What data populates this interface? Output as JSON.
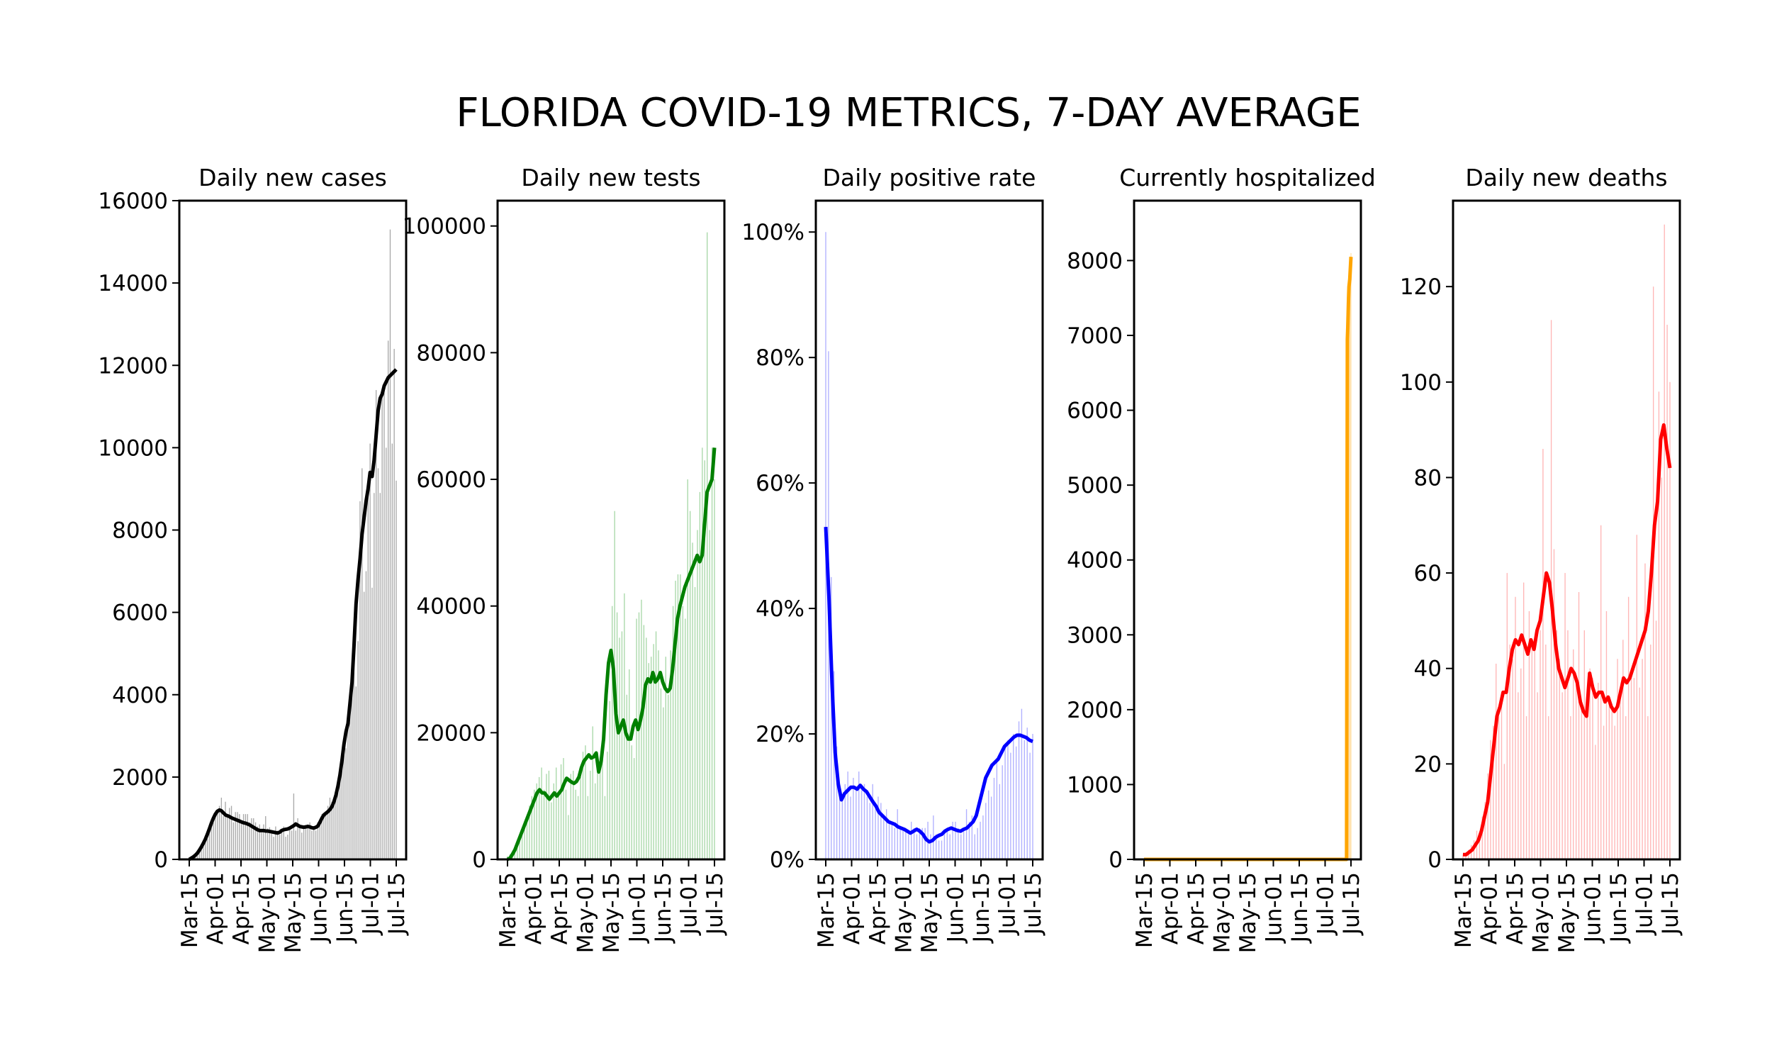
{
  "chart_data": {
    "title": "FLORIDA COVID-19 METRICS, 7-DAY AVERAGE",
    "panels": [
      {
        "id": "cases",
        "type": "bar+line",
        "title": "Daily new cases",
        "color": "#000000",
        "bar_color": "#a9a9a9",
        "ylim": [
          0,
          16000
        ],
        "yticks": [
          0,
          2000,
          4000,
          6000,
          8000,
          10000,
          12000,
          14000,
          16000
        ],
        "ytick_labels": [
          "0",
          "2000",
          "4000",
          "6000",
          "8000",
          "10000",
          "12000",
          "14000",
          "16000"
        ],
        "xticks": [
          "Mar-15",
          "Apr-01",
          "Apr-15",
          "May-01",
          "May-15",
          "Jun-01",
          "Jun-15",
          "Jul-01",
          "Jul-15"
        ],
        "daily_values": [
          30,
          60,
          80,
          120,
          150,
          230,
          280,
          330,
          420,
          500,
          640,
          770,
          900,
          1050,
          1200,
          1300,
          1500,
          1050,
          1400,
          1100,
          1250,
          1300,
          900,
          1150,
          1150,
          1100,
          900,
          1100,
          1100,
          1100,
          900,
          1000,
          1000,
          900,
          800,
          850,
          650,
          850,
          1050,
          750,
          780,
          700,
          550,
          800,
          700,
          600,
          650,
          800,
          550,
          600,
          750,
          700,
          1600,
          700,
          1000,
          800,
          650,
          800,
          800,
          850,
          900,
          700,
          800,
          700,
          900,
          950,
          1100,
          1050,
          1150,
          1300,
          1500,
          1400,
          1300,
          1600,
          1700,
          2100,
          2600,
          3000,
          2700,
          3300,
          3800,
          4100,
          5500,
          4200,
          5300,
          8700,
          9500,
          6500,
          7000,
          9000,
          10100,
          6600,
          8900,
          11400,
          9500,
          8900,
          11400,
          11500,
          10000,
          12600,
          15300,
          10100,
          12400,
          9200
        ],
        "avg_values": [
          0,
          30,
          60,
          100,
          150,
          220,
          300,
          390,
          490,
          610,
          740,
          880,
          1000,
          1100,
          1170,
          1200,
          1180,
          1130,
          1080,
          1060,
          1040,
          1010,
          990,
          970,
          950,
          930,
          910,
          890,
          880,
          860,
          840,
          810,
          780,
          750,
          720,
          700,
          700,
          700,
          690,
          690,
          680,
          670,
          660,
          650,
          640,
          660,
          700,
          720,
          730,
          740,
          760,
          790,
          820,
          860,
          830,
          800,
          790,
          780,
          790,
          800,
          790,
          770,
          760,
          780,
          810,
          900,
          1000,
          1080,
          1120,
          1160,
          1210,
          1280,
          1400,
          1560,
          1780,
          2050,
          2400,
          2800,
          3100,
          3300,
          3800,
          4300,
          5200,
          6200,
          6800,
          7300,
          7900,
          8300,
          8700,
          9000,
          9400,
          9300,
          9700,
          10300,
          10900,
          11200,
          11300,
          11500,
          11600,
          11700,
          11750,
          11800,
          11850,
          11900
        ]
      },
      {
        "id": "tests",
        "type": "bar+line",
        "title": "Daily new tests",
        "color": "#008000",
        "bar_color": "#a8d8a8",
        "ylim": [
          0,
          104000
        ],
        "yticks": [
          0,
          20000,
          40000,
          60000,
          80000,
          100000
        ],
        "ytick_labels": [
          "0",
          "20000",
          "40000",
          "60000",
          "80000",
          "100000"
        ],
        "xticks": [
          "Mar-15",
          "Apr-01",
          "Apr-15",
          "May-01",
          "May-15",
          "Jun-01",
          "Jun-15",
          "Jul-01",
          "Jul-15"
        ],
        "daily_values": [
          500,
          800,
          1200,
          2000,
          3000,
          4000,
          5000,
          6000,
          7000,
          8500,
          10000,
          11000,
          12000,
          13000,
          14500,
          11000,
          13500,
          14000,
          9000,
          12000,
          14500,
          10000,
          15000,
          16000,
          11000,
          7000,
          13500,
          14000,
          11000,
          10000,
          13000,
          17000,
          18000,
          10000,
          14000,
          21000,
          12000,
          15000,
          16000,
          17000,
          10000,
          17000,
          25000,
          40000,
          55000,
          39000,
          35000,
          36000,
          42000,
          26000,
          30000,
          18000,
          16000,
          38000,
          39000,
          41000,
          37000,
          35000,
          31000,
          32000,
          34000,
          36000,
          33000,
          27000,
          24000,
          32000,
          26000,
          33000,
          40000,
          44000,
          45000,
          45000,
          40000,
          38000,
          60000,
          55000,
          50000,
          43000,
          52000,
          58000,
          65000,
          63000,
          99000,
          52000,
          65000,
          60000
        ],
        "avg_values": [
          0,
          200,
          800,
          1500,
          2500,
          3500,
          4500,
          5500,
          6500,
          7500,
          8500,
          9500,
          10500,
          11000,
          10500,
          10500,
          10000,
          9500,
          10000,
          10500,
          10000,
          10500,
          11000,
          12000,
          12800,
          12500,
          12200,
          12000,
          12300,
          13000,
          14500,
          15500,
          16000,
          16500,
          16000,
          16200,
          16800,
          13800,
          15500,
          19000,
          26000,
          31000,
          33000,
          30000,
          23000,
          20000,
          21000,
          22000,
          20000,
          19000,
          19000,
          21000,
          22000,
          20500,
          22000,
          24000,
          27500,
          28500,
          28000,
          29500,
          28000,
          28500,
          29500,
          28000,
          27000,
          26500,
          27000,
          30000,
          34000,
          38000,
          40000,
          41500,
          43000,
          44000,
          45000,
          46000,
          47000,
          48000,
          47000,
          48000,
          53000,
          58000,
          59000,
          60000,
          65000
        ]
      },
      {
        "id": "positive_rate",
        "type": "bar+line",
        "title": "Daily positive rate",
        "color": "#0000ff",
        "bar_color": "#b0b0ff",
        "ylim": [
          0,
          1.05
        ],
        "yticks": [
          0,
          0.2,
          0.4,
          0.6,
          0.8,
          1.0
        ],
        "ytick_labels": [
          "0%",
          "20%",
          "40%",
          "60%",
          "80%",
          "100%"
        ],
        "xticks": [
          "Mar-15",
          "Apr-01",
          "Apr-15",
          "May-01",
          "May-15",
          "Jun-01",
          "Jun-15",
          "Jul-01",
          "Jul-15"
        ],
        "daily_values": [
          1.0,
          0.81,
          0.45,
          0.3,
          0.18,
          0.12,
          0.1,
          0.12,
          0.14,
          0.1,
          0.13,
          0.11,
          0.14,
          0.11,
          0.12,
          0.1,
          0.09,
          0.12,
          0.08,
          0.1,
          0.09,
          0.07,
          0.08,
          0.06,
          0.06,
          0.05,
          0.08,
          0.05,
          0.05,
          0.05,
          0.04,
          0.06,
          0.05,
          0.04,
          0.05,
          0.05,
          0.05,
          0.06,
          0.04,
          0.07,
          0.04,
          0.03,
          0.03,
          0.04,
          0.05,
          0.04,
          0.06,
          0.06,
          0.05,
          0.04,
          0.05,
          0.08,
          0.06,
          0.07,
          0.04,
          0.05,
          0.06,
          0.07,
          0.09,
          0.11,
          0.1,
          0.13,
          0.16,
          0.12,
          0.15,
          0.18,
          0.19,
          0.17,
          0.2,
          0.18,
          0.22,
          0.24,
          0.19,
          0.21,
          0.17,
          0.2
        ],
        "avg_values": [
          0.53,
          0.42,
          0.28,
          0.17,
          0.12,
          0.095,
          0.105,
          0.11,
          0.115,
          0.115,
          0.112,
          0.118,
          0.112,
          0.108,
          0.1,
          0.092,
          0.085,
          0.075,
          0.07,
          0.065,
          0.06,
          0.058,
          0.056,
          0.052,
          0.05,
          0.048,
          0.045,
          0.042,
          0.045,
          0.048,
          0.045,
          0.04,
          0.032,
          0.028,
          0.03,
          0.035,
          0.038,
          0.04,
          0.045,
          0.048,
          0.05,
          0.048,
          0.046,
          0.045,
          0.048,
          0.05,
          0.055,
          0.06,
          0.07,
          0.09,
          0.11,
          0.13,
          0.14,
          0.15,
          0.155,
          0.16,
          0.17,
          0.18,
          0.185,
          0.19,
          0.195,
          0.198,
          0.198,
          0.196,
          0.194,
          0.19,
          0.188
        ]
      },
      {
        "id": "hospitalized",
        "type": "bar+line",
        "title": "Currently hospitalized",
        "color": "#ffa500",
        "bar_color": "#ffe2b0",
        "ylim": [
          0,
          8800
        ],
        "yticks": [
          0,
          1000,
          2000,
          3000,
          4000,
          5000,
          6000,
          7000,
          8000
        ],
        "ytick_labels": [
          "0",
          "1000",
          "2000",
          "3000",
          "4000",
          "5000",
          "6000",
          "7000",
          "8000"
        ],
        "xticks": [
          "Mar-15",
          "Apr-01",
          "Apr-15",
          "May-01",
          "May-15",
          "Jun-01",
          "Jun-15",
          "Jul-01",
          "Jul-15"
        ],
        "hospitalized_start_index": 113,
        "daily_values": [
          6900,
          7100,
          7300,
          7500,
          7600,
          7700,
          7800,
          7900,
          8000,
          8100
        ],
        "avg_values": [
          6950,
          7100,
          7300,
          7500,
          7650,
          7700,
          7750,
          7850,
          7950,
          8050
        ]
      },
      {
        "id": "deaths",
        "type": "bar+line",
        "title": "Daily new deaths",
        "color": "#ff0000",
        "bar_color": "#ffb6b6",
        "ylim": [
          0,
          138
        ],
        "yticks": [
          0,
          20,
          40,
          60,
          80,
          100,
          120
        ],
        "ytick_labels": [
          "0",
          "20",
          "40",
          "60",
          "80",
          "100",
          "120"
        ],
        "xticks": [
          "Mar-15",
          "Apr-01",
          "Apr-15",
          "May-01",
          "May-15",
          "Jun-01",
          "Jun-15",
          "Jul-01",
          "Jul-15"
        ],
        "daily_values": [
          1,
          1,
          2,
          3,
          4,
          6,
          5,
          9,
          12,
          18,
          25,
          28,
          41,
          30,
          35,
          20,
          60,
          45,
          42,
          55,
          35,
          40,
          58,
          30,
          52,
          46,
          44,
          35,
          48,
          86,
          45,
          30,
          113,
          65,
          48,
          42,
          35,
          60,
          48,
          30,
          44,
          38,
          56,
          33,
          48,
          30,
          40,
          38,
          24,
          37,
          70,
          28,
          52,
          34,
          32,
          28,
          42,
          36,
          46,
          30,
          55,
          40,
          38,
          68,
          36,
          42,
          62,
          30,
          45,
          120,
          50,
          98,
          80,
          133,
          112,
          100
        ],
        "avg_values": [
          1,
          1,
          1.5,
          2,
          3,
          4,
          6,
          9,
          12,
          18,
          24,
          30,
          32,
          35,
          35,
          40,
          44,
          46,
          45,
          47,
          45,
          43,
          46,
          44,
          48,
          50,
          55,
          60,
          58,
          52,
          45,
          40,
          38,
          36,
          38,
          40,
          39,
          37,
          33,
          31,
          30,
          39,
          36,
          34,
          35,
          35,
          33,
          34,
          32,
          31,
          32,
          35,
          38,
          37,
          38,
          40,
          42,
          44,
          46,
          48,
          52,
          60,
          70,
          75,
          88,
          91,
          86,
          82
        ]
      }
    ]
  }
}
